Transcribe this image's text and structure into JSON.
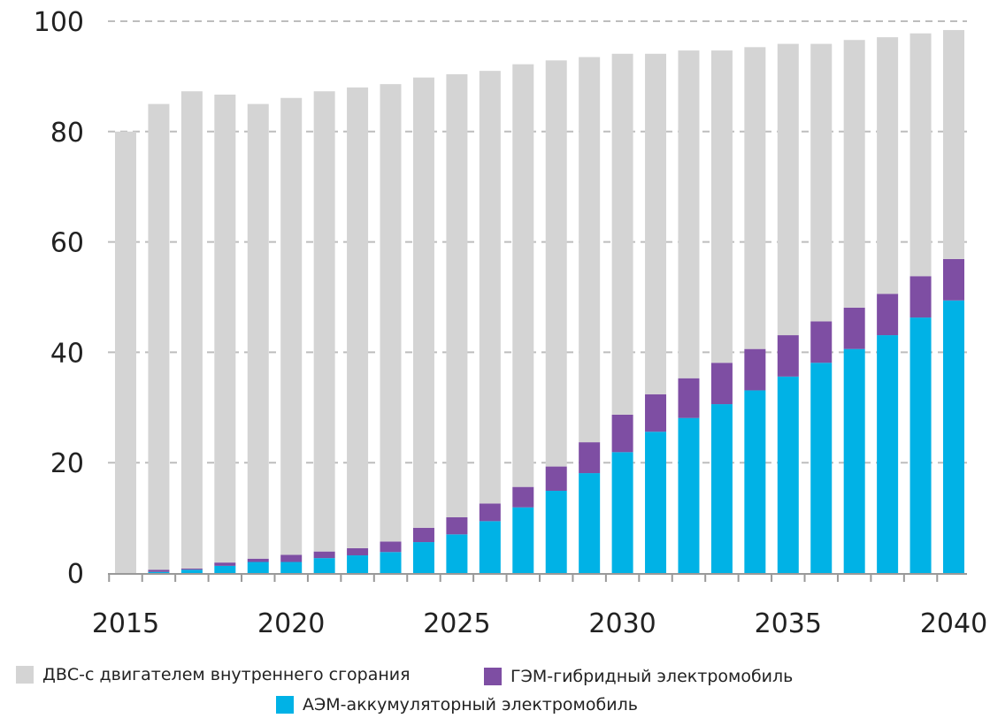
{
  "chart_data": {
    "type": "bar",
    "stacked": true,
    "x": [
      2015,
      2016,
      2017,
      2018,
      2019,
      2020,
      2021,
      2022,
      2023,
      2024,
      2025,
      2026,
      2027,
      2028,
      2029,
      2030,
      2031,
      2032,
      2033,
      2034,
      2035,
      2036,
      2037,
      2038,
      2039,
      2040
    ],
    "x_tick_labels": [
      "2015",
      "2020",
      "2025",
      "2030",
      "2035",
      "2040"
    ],
    "x_tick_values": [
      2015,
      2020,
      2025,
      2030,
      2035,
      2040
    ],
    "ylim": [
      0,
      100
    ],
    "y_ticks": [
      0,
      20,
      40,
      60,
      80,
      100
    ],
    "y_tick_labels": [
      "0",
      "20",
      "40",
      "60",
      "80",
      "100"
    ],
    "grid": "horizontal-dashed",
    "legend_position": "bottom",
    "totals": [
      80,
      85,
      87.3,
      86.7,
      85,
      86.1,
      87.3,
      88,
      88.6,
      89.8,
      90.4,
      91,
      92.2,
      92.9,
      93.5,
      94.1,
      94.1,
      94.7,
      94.7,
      95.3,
      95.9,
      95.9,
      96.6,
      97.1,
      97.8,
      98.4
    ],
    "series": [
      {
        "name": "АЭМ-аккумуляторный электромобиль",
        "color": "#00b2e6",
        "values": [
          0,
          0.2,
          0.6,
          1.3,
          2.0,
          2.0,
          2.7,
          3.2,
          3.8,
          5.6,
          7.0,
          9.4,
          11.9,
          14.9,
          18.1,
          21.9,
          25.6,
          28.1,
          30.6,
          33.1,
          35.6,
          38.1,
          40.6,
          43.1,
          46.3,
          49.4
        ]
      },
      {
        "name": "ГЭМ-гибридный электромобиль",
        "color": "#7e4ea3",
        "values": [
          0,
          0.4,
          0.2,
          0.6,
          0.6,
          1.3,
          1.2,
          1.3,
          1.9,
          2.6,
          3.1,
          3.2,
          3.7,
          4.4,
          5.6,
          6.8,
          6.8,
          7.2,
          7.5,
          7.5,
          7.5,
          7.5,
          7.5,
          7.5,
          7.5,
          7.5
        ]
      },
      {
        "name": "ДВС-с двигателем внутреннего сгорания",
        "color": "#d4d4d4",
        "values": [
          80,
          84.4,
          86.5,
          84.8,
          82.4,
          82.8,
          83.4,
          83.5,
          82.9,
          81.6,
          80.3,
          78.4,
          76.6,
          73.6,
          69.8,
          65.4,
          61.7,
          59.4,
          56.6,
          54.7,
          52.8,
          50.3,
          48.5,
          46.5,
          44.0,
          41.5
        ]
      }
    ]
  },
  "legend": {
    "ice": {
      "label": "ДВС-с двигателем внутреннего сгорания",
      "color": "#d4d4d4"
    },
    "hybrid": {
      "label": "ГЭМ-гибридный электромобиль",
      "color": "#7e4ea3"
    },
    "battery": {
      "label": "АЭМ-аккумуляторный электромобиль",
      "color": "#00b2e6"
    }
  }
}
